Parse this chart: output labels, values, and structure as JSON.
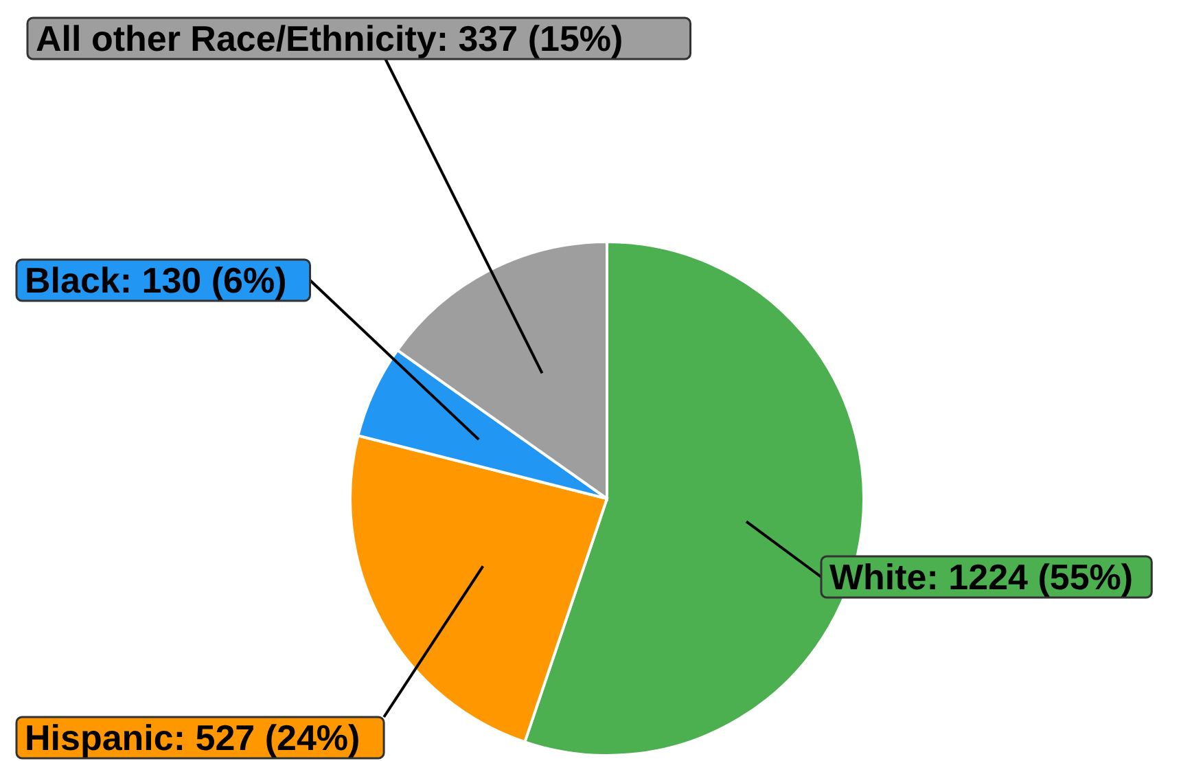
{
  "chart_data": {
    "type": "pie",
    "categories": [
      "White",
      "Hispanic",
      "Black",
      "All other Race/Ethnicity"
    ],
    "values": [
      1224,
      527,
      130,
      337
    ],
    "colors": [
      "#4caf50",
      "#ff9800",
      "#2196f3",
      "#9e9e9e"
    ],
    "value_labels": [
      "1224 (55%)",
      "527 (24%)",
      "130 (6%)",
      "337 (15%)"
    ],
    "legend": false
  }
}
